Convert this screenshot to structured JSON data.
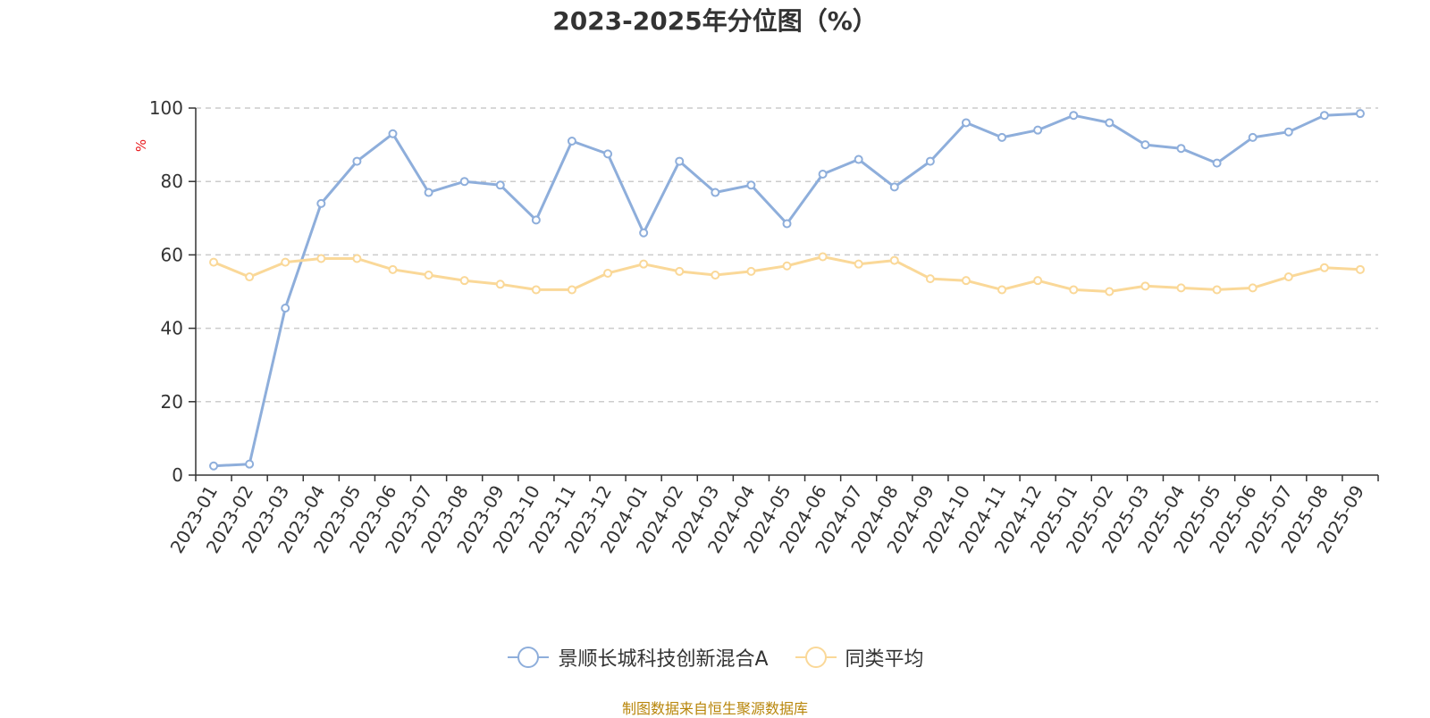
{
  "chart_data": {
    "type": "line",
    "title": "2023-2025年分位图（%）",
    "ylabel": "%",
    "ylim": [
      0,
      100
    ],
    "yticks": [
      0,
      20,
      40,
      60,
      80,
      100
    ],
    "grid": true,
    "legend_position": "bottom",
    "categories": [
      "2023-01",
      "2023-02",
      "2023-03",
      "2023-04",
      "2023-05",
      "2023-06",
      "2023-07",
      "2023-08",
      "2023-09",
      "2023-10",
      "2023-11",
      "2023-12",
      "2024-01",
      "2024-02",
      "2024-03",
      "2024-04",
      "2024-05",
      "2024-06",
      "2024-07",
      "2024-08",
      "2024-09",
      "2024-10",
      "2024-11",
      "2024-12",
      "2025-01",
      "2025-02",
      "2025-03",
      "2025-04",
      "2025-05",
      "2025-06",
      "2025-07",
      "2025-08",
      "2025-09"
    ],
    "series": [
      {
        "name": "景顺长城科技创新混合A",
        "color": "#8eaedb",
        "values": [
          2.5,
          3,
          45.5,
          74,
          85.5,
          93,
          77,
          80,
          79,
          69.5,
          91,
          87.5,
          66,
          85.5,
          77,
          79,
          68.5,
          82,
          86,
          78.5,
          85.5,
          96,
          92,
          94,
          98,
          96,
          90,
          89,
          85,
          92,
          93.5,
          98,
          98.5
        ]
      },
      {
        "name": "同类平均",
        "color": "#fad898",
        "values": [
          58,
          54,
          58,
          59,
          59,
          56,
          54.5,
          53,
          52,
          50.5,
          50.5,
          55,
          57.5,
          55.5,
          54.5,
          55.5,
          57,
          59.5,
          57.5,
          58.5,
          53.5,
          53,
          50.5,
          53,
          50.5,
          50,
          51.5,
          51,
          50.5,
          51,
          54,
          56.5,
          56
        ]
      }
    ],
    "source_note": "制图数据来自恒生聚源数据库",
    "colors": {
      "axis": "#333333",
      "grid": "#cccccc",
      "ylabel": "#e8171b",
      "source": "#b8860b"
    }
  }
}
